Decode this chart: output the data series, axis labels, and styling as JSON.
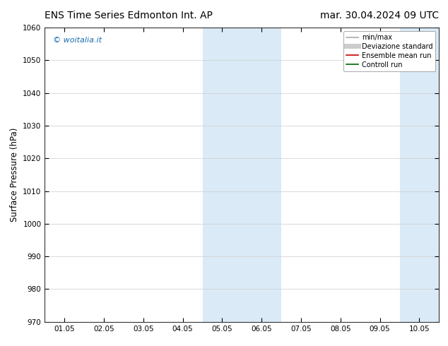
{
  "title_left": "ENS Time Series Edmonton Int. AP",
  "title_right": "mar. 30.04.2024 09 UTC",
  "ylabel": "Surface Pressure (hPa)",
  "ylim": [
    970,
    1060
  ],
  "yticks": [
    970,
    980,
    990,
    1000,
    1010,
    1020,
    1030,
    1040,
    1050,
    1060
  ],
  "xtick_labels": [
    "01.05",
    "02.05",
    "03.05",
    "04.05",
    "05.05",
    "06.05",
    "07.05",
    "08.05",
    "09.05",
    "10.05"
  ],
  "xtick_positions": [
    0,
    1,
    2,
    3,
    4,
    5,
    6,
    7,
    8,
    9
  ],
  "xlim": [
    -0.5,
    9.5
  ],
  "shaded_bands": [
    {
      "xmin": 3.5,
      "xmax": 5.5,
      "color": "#daeaf6"
    },
    {
      "xmin": 8.5,
      "xmax": 9.5,
      "color": "#daeaf6"
    }
  ],
  "watermark": "© woitalia.it",
  "watermark_color": "#1a6aad",
  "legend_entries": [
    {
      "label": "min/max",
      "color": "#aaaaaa",
      "lw": 1.2
    },
    {
      "label": "Deviazione standard",
      "color": "#cccccc",
      "lw": 5
    },
    {
      "label": "Ensemble mean run",
      "color": "#cc0000",
      "lw": 1.2
    },
    {
      "label": "Controll run",
      "color": "#006600",
      "lw": 1.2
    }
  ],
  "background_color": "#ffffff",
  "grid_color": "#cccccc",
  "title_fontsize": 10,
  "tick_fontsize": 7.5,
  "ylabel_fontsize": 8.5,
  "watermark_fontsize": 8
}
